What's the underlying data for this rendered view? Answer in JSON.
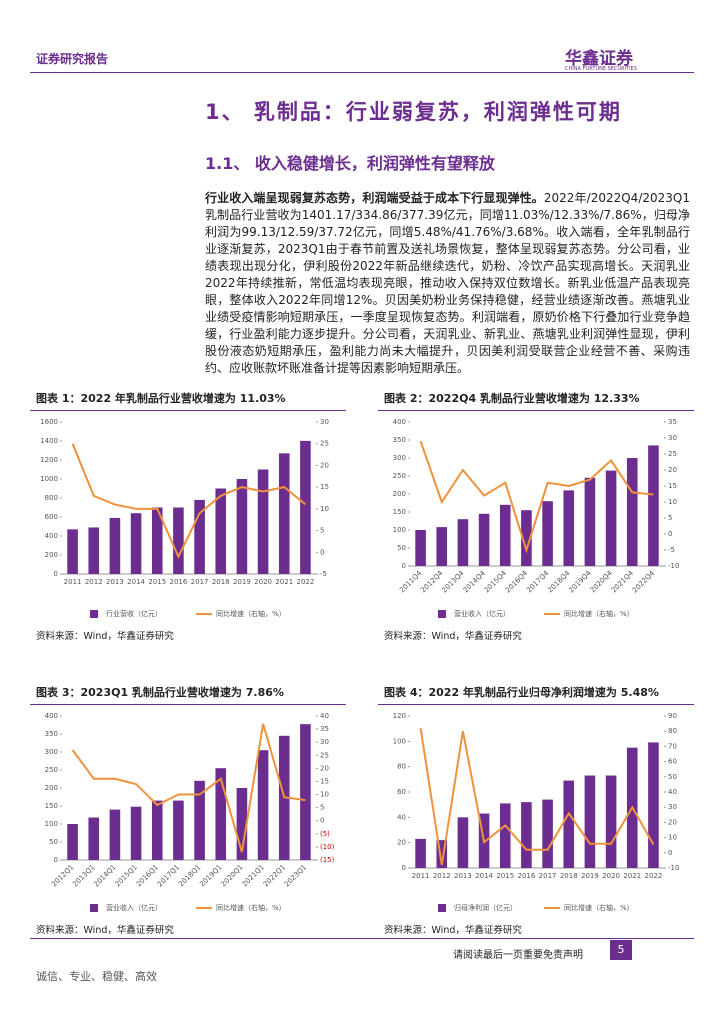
{
  "header": {
    "label": "证券研究报告",
    "brand": "华鑫证券",
    "brand_en": "CHINA FORTUNE SECURITIES"
  },
  "headings": [
    "1、 乳制品：行业弱复苏，利润弹性可期",
    "1.1、 收入稳健增长，利润弹性有望释放"
  ],
  "body": {
    "lead": "行业收入端呈现弱复苏态势，利润端受益于成本下行显现弹性。",
    "text": "2022年/2022Q4/2023Q1乳制品行业营收为1401.17/334.86/377.39亿元，同增11.03%/12.33%/7.86%，归母净利润为99.13/12.59/37.72亿元，同增5.48%/41.76%/3.68%。收入端看，全年乳制品行业逐渐复苏，2023Q1由于春节前置及送礼场景恢复，整体呈现弱复苏态势。分公司看，业绩表现出现分化，伊利股份2022年新品继续迭代，奶粉、冷饮产品实现高增长。天润乳业2022年持续推新，常低温均表现亮眼，推动收入保持双位数增长。新乳业低温产品表现亮眼，整体收入2022年同增12%。贝因美奶粉业务保持稳健，经营业绩逐渐改善。燕塘乳业业绩受疫情影响短期承压，一季度呈现恢复态势。利润端看，原奶价格下行叠加行业竞争趋缓，行业盈利能力逐步提升。分公司看，天润乳业、新乳业、燕塘乳业利润弹性显现，伊利股份液态奶短期承压，盈利能力尚未大幅提升，贝因美利润受联营企业经营不善、采购违约、应收账款坏账准备计提等因素影响短期承压。"
  },
  "sources": [
    "资料来源：Wind，华鑫证券研究",
    "资料来源：Wind，华鑫证券研究",
    "资料来源：Wind，华鑫证券研究",
    "资料来源：Wind，华鑫证券研究"
  ],
  "footer": {
    "notice": "请阅读最后一页重要免责声明",
    "page": "5",
    "motto": "诚信、专业、稳健、高效"
  },
  "chart_data": [
    {
      "type": "combo",
      "title": "图表 1：2022 年乳制品行业营收增速为 11.03%",
      "categories": [
        "2011",
        "2012",
        "2013",
        "2014",
        "2015",
        "2016",
        "2017",
        "2018",
        "2019",
        "2020",
        "2021",
        "2022"
      ],
      "series": [
        {
          "name": "行业营收（亿元）",
          "type": "bar",
          "color": "#6b2d8f",
          "values": [
            470,
            490,
            590,
            640,
            700,
            700,
            780,
            900,
            1000,
            1100,
            1270,
            1401.17
          ]
        },
        {
          "name": "同比增速（右轴，%）",
          "type": "line",
          "axis": "y2",
          "color": "#f0923c",
          "values": [
            25,
            13,
            11,
            10,
            10,
            -1,
            9,
            13,
            15,
            14,
            15,
            11.03
          ]
        }
      ],
      "ylim": [
        0,
        1600
      ],
      "yticks": [
        0,
        200,
        400,
        600,
        800,
        1000,
        1200,
        1400,
        1600
      ],
      "y2lim": [
        -5,
        30
      ],
      "y2ticks": [
        -5,
        0,
        5,
        10,
        15,
        20,
        25,
        30
      ],
      "rotate": false
    },
    {
      "type": "combo",
      "title": "图表 2：2022Q4 乳制品行业营收增速为 12.33%",
      "categories": [
        "2011Q4",
        "2012Q4",
        "2013Q4",
        "2014Q4",
        "2015Q4",
        "2016Q4",
        "2017Q4",
        "2018Q4",
        "2019Q4",
        "2020Q4",
        "2021Q4",
        "2022Q4"
      ],
      "series": [
        {
          "name": "营业收入（亿元）",
          "type": "bar",
          "color": "#6b2d8f",
          "values": [
            100,
            108,
            130,
            145,
            170,
            155,
            180,
            210,
            245,
            265,
            300,
            334.86
          ]
        },
        {
          "name": "同比增速（右轴，%）",
          "type": "line",
          "axis": "y2",
          "color": "#f0923c",
          "values": [
            29,
            10,
            20,
            12,
            16,
            -5,
            16,
            15,
            17,
            23,
            13,
            12.33
          ]
        }
      ],
      "ylim": [
        0,
        400
      ],
      "yticks": [
        0,
        50,
        100,
        150,
        200,
        250,
        300,
        350,
        400
      ],
      "y2lim": [
        -10,
        35
      ],
      "y2ticks": [
        -10,
        -5,
        0,
        5,
        10,
        15,
        20,
        25,
        30,
        35
      ],
      "rotate": true
    },
    {
      "type": "combo",
      "title": "图表 3：2023Q1 乳制品行业营收增速为 7.86%",
      "categories": [
        "2012Q1",
        "2013Q1",
        "2014Q1",
        "2015Q1",
        "2016Q1",
        "2017Q1",
        "2018Q1",
        "2019Q1",
        "2020Q1",
        "2021Q1",
        "2022Q1",
        "2023Q1"
      ],
      "series": [
        {
          "name": "营业收入（亿元）",
          "type": "bar",
          "color": "#6b2d8f",
          "values": [
            100,
            118,
            140,
            148,
            165,
            165,
            220,
            255,
            200,
            305,
            345,
            377.39
          ]
        },
        {
          "name": "同比增速（右轴，%）",
          "type": "line",
          "axis": "y2",
          "color": "#f0923c",
          "values": [
            27,
            16,
            16,
            14,
            6,
            10,
            10,
            16,
            -12,
            37,
            9,
            7.86
          ]
        }
      ],
      "ylim": [
        0,
        400
      ],
      "yticks": [
        0,
        50,
        100,
        150,
        200,
        250,
        300,
        350,
        400
      ],
      "y2lim": [
        -15,
        40
      ],
      "y2ticks": [
        {
          "value": -15,
          "label": "(15)"
        },
        {
          "value": -10,
          "label": "(10)"
        },
        {
          "value": -5,
          "label": "(5)"
        },
        0,
        5,
        10,
        15,
        20,
        25,
        30,
        35,
        40
      ],
      "rotate": true
    },
    {
      "type": "combo",
      "title": "图表 4：2022 年乳制品行业归母净利润增速为 5.48%",
      "categories": [
        "2011",
        "2012",
        "2013",
        "2014",
        "2015",
        "2016",
        "2017",
        "2018",
        "2019",
        "2020",
        "2021",
        "2022"
      ],
      "series": [
        {
          "name": "归母净利润（亿元）",
          "type": "bar",
          "color": "#6b2d8f",
          "values": [
            23,
            22,
            40,
            43,
            51,
            52,
            54,
            69,
            73,
            73,
            95,
            99.13
          ]
        },
        {
          "name": "同比增速（右轴，%）",
          "type": "line",
          "axis": "y2",
          "color": "#f0923c",
          "values": [
            82,
            -8,
            80,
            7,
            18,
            2,
            2,
            26,
            6,
            6,
            30,
            5.48
          ]
        }
      ],
      "ylim": [
        0,
        120
      ],
      "yticks": [
        0,
        20,
        40,
        60,
        80,
        100,
        120
      ],
      "y2lim": [
        -10,
        90
      ],
      "y2ticks": [
        -10,
        0,
        10,
        20,
        30,
        40,
        50,
        60,
        70,
        80,
        90
      ],
      "rotate": false
    }
  ]
}
